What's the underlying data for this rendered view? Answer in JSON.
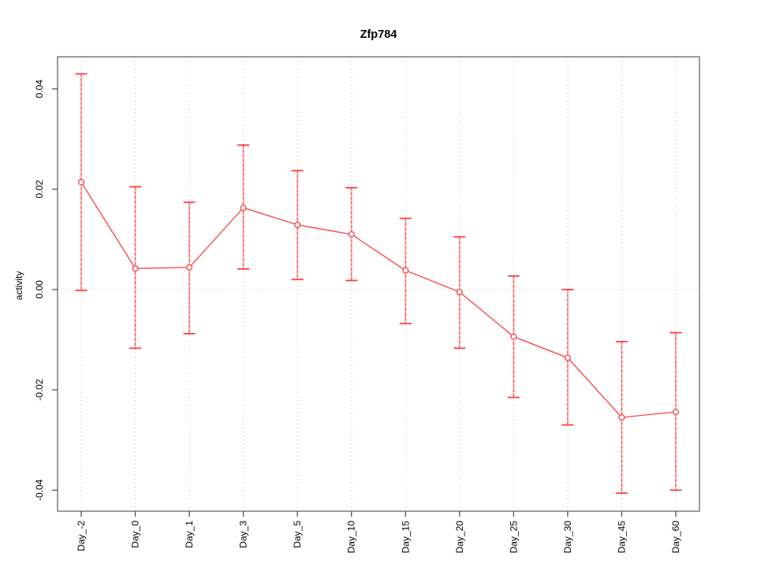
{
  "chart_data": {
    "type": "line",
    "title": "Zfp784",
    "xlabel": "",
    "ylabel": "activity",
    "categories": [
      "Day_-2",
      "Day_0",
      "Day_1",
      "Day_3",
      "Day_5",
      "Day_10",
      "Day_15",
      "Day_20",
      "Day_25",
      "Day_30",
      "Day_45",
      "Day_60"
    ],
    "series": [
      {
        "name": "activity",
        "values": [
          0.0214,
          0.0042,
          0.0044,
          0.0163,
          0.0129,
          0.011,
          0.0038,
          -0.0005,
          -0.0094,
          -0.0136,
          -0.0255,
          -0.0244
        ],
        "upper": [
          0.043,
          0.0205,
          0.0174,
          0.0288,
          0.0237,
          0.0203,
          0.0142,
          0.0105,
          0.0027,
          0.0,
          -0.0104,
          -0.0086
        ],
        "lower": [
          -0.0002,
          -0.0117,
          -0.0088,
          0.0041,
          0.002,
          0.0018,
          -0.0068,
          -0.0117,
          -0.0215,
          -0.027,
          -0.0406,
          -0.04
        ]
      }
    ],
    "ylim": [
      -0.0442,
      0.0464
    ],
    "ytick_values": [
      -0.04,
      -0.02,
      0,
      0.02,
      0.04
    ],
    "ytick_labels": [
      "-0.04",
      "-0.02",
      "0.00",
      "0.02",
      "0.04"
    ],
    "zero_line": 0,
    "grid": "dotted vertical gridline at each category; dotted horizontal line at zero",
    "legend": "none",
    "marker": "open-circle",
    "error_bars": true
  },
  "colors": {
    "series_red": "#ff4040",
    "errorbar_underlay": "#ffb3b3",
    "grid": "#cccccc",
    "frame": "#828282",
    "tick": "#555555",
    "text": "#000000",
    "background": "#ffffff",
    "point_fill": "#ffffff"
  }
}
